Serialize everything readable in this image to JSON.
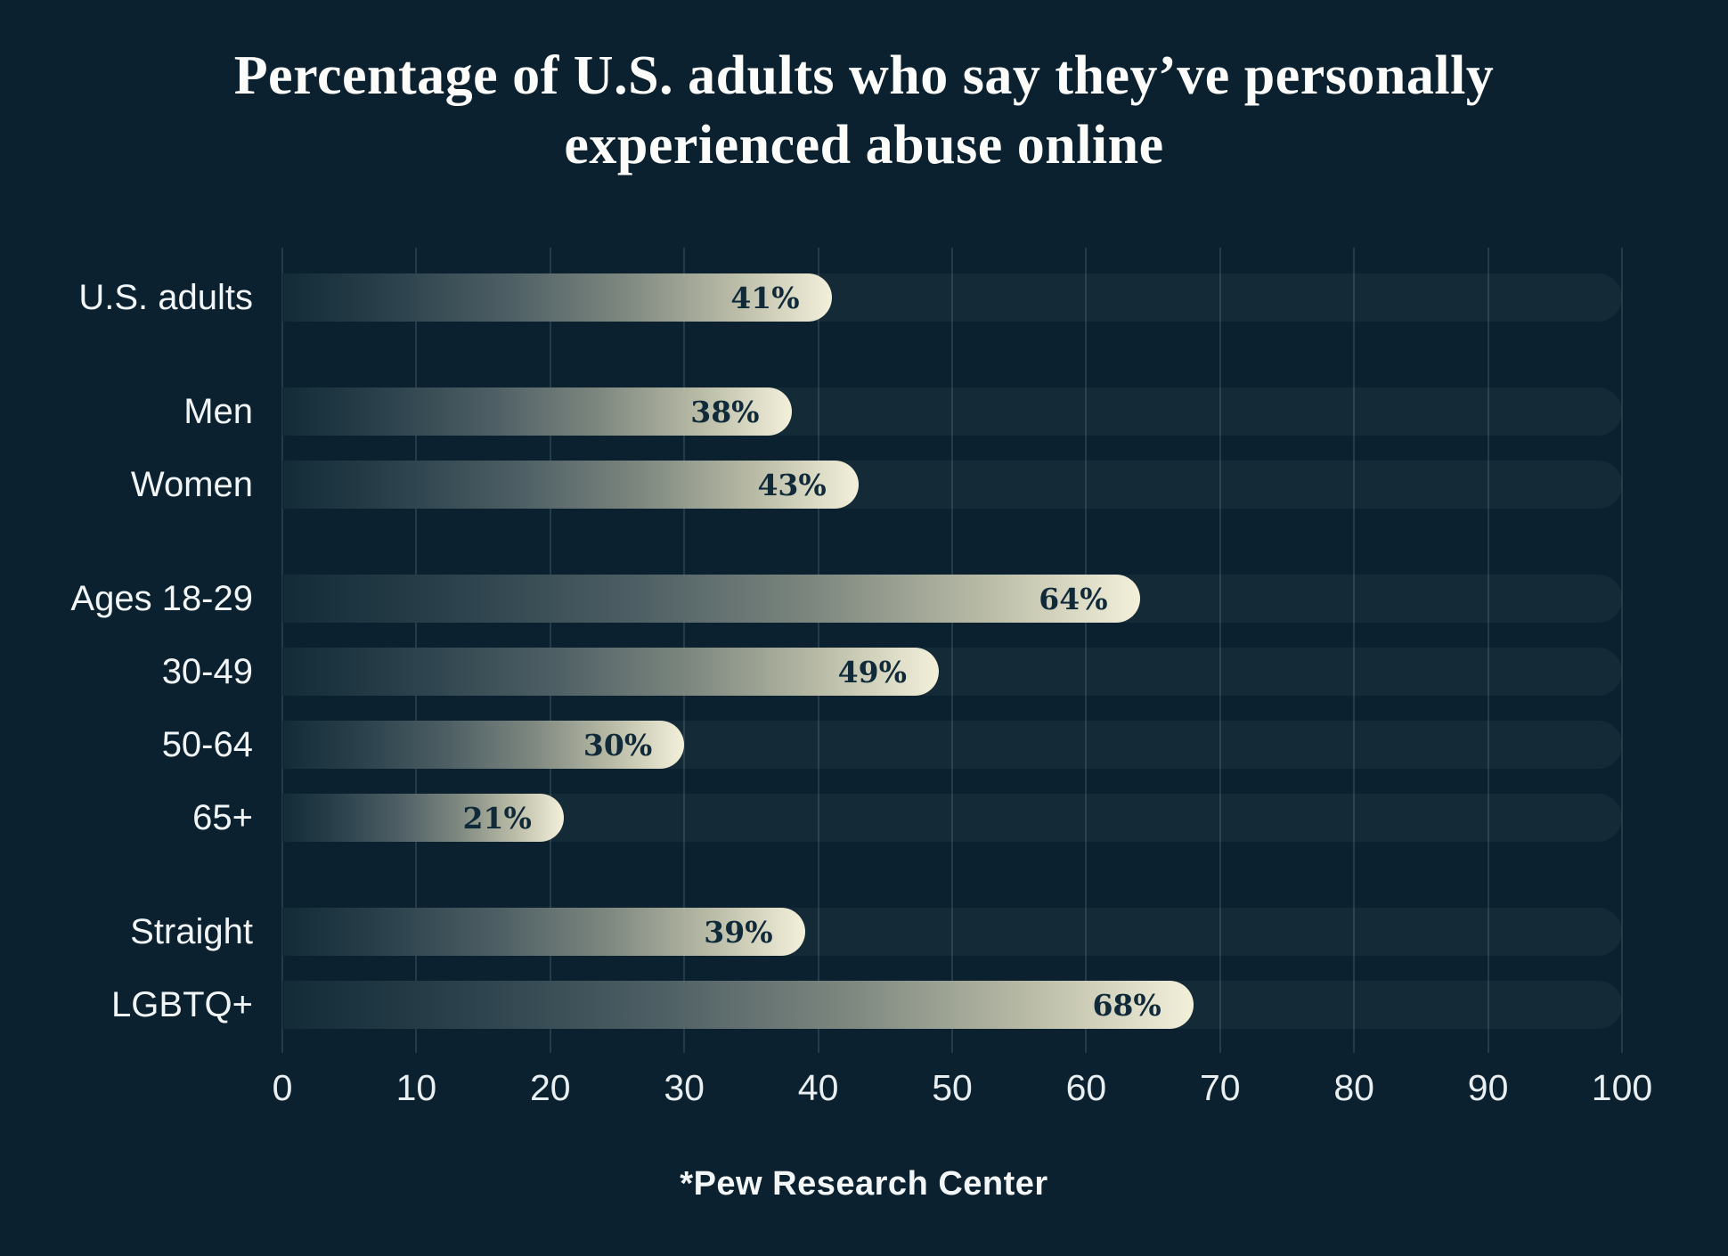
{
  "title_lines": [
    "Percentage of U.S. adults who say they’ve personally",
    "experienced abuse online"
  ],
  "footer": "*Pew Research Center",
  "colors": {
    "background": "#0b212f",
    "bar_gradient_start": "#122b37",
    "bar_gradient_end": "#f3f0da",
    "value_text": "#102a3a",
    "label_text": "#f1f5f6",
    "gridline": "rgba(170,200,214,0.16)"
  },
  "chart_data": {
    "type": "bar",
    "orientation": "horizontal",
    "title": "Percentage of U.S. adults who say they’ve personally experienced abuse online",
    "categories": [
      "U.S. adults",
      "Men",
      "Women",
      "Ages 18-29",
      "30-49",
      "50-64",
      "65+",
      "Straight",
      "LGBTQ+"
    ],
    "values": [
      41,
      38,
      43,
      64,
      49,
      30,
      21,
      39,
      68
    ],
    "value_labels": [
      "41%",
      "38%",
      "43%",
      "64%",
      "49%",
      "30%",
      "21%",
      "39%",
      "68%"
    ],
    "groups": [
      [
        0
      ],
      [
        1,
        2
      ],
      [
        3,
        4,
        5,
        6
      ],
      [
        7,
        8
      ]
    ],
    "xlim": [
      0,
      100
    ],
    "xticks": [
      0,
      10,
      20,
      30,
      40,
      50,
      60,
      70,
      80,
      90,
      100
    ],
    "grid": "vertical",
    "legend": "none",
    "source": "*Pew Research Center"
  }
}
